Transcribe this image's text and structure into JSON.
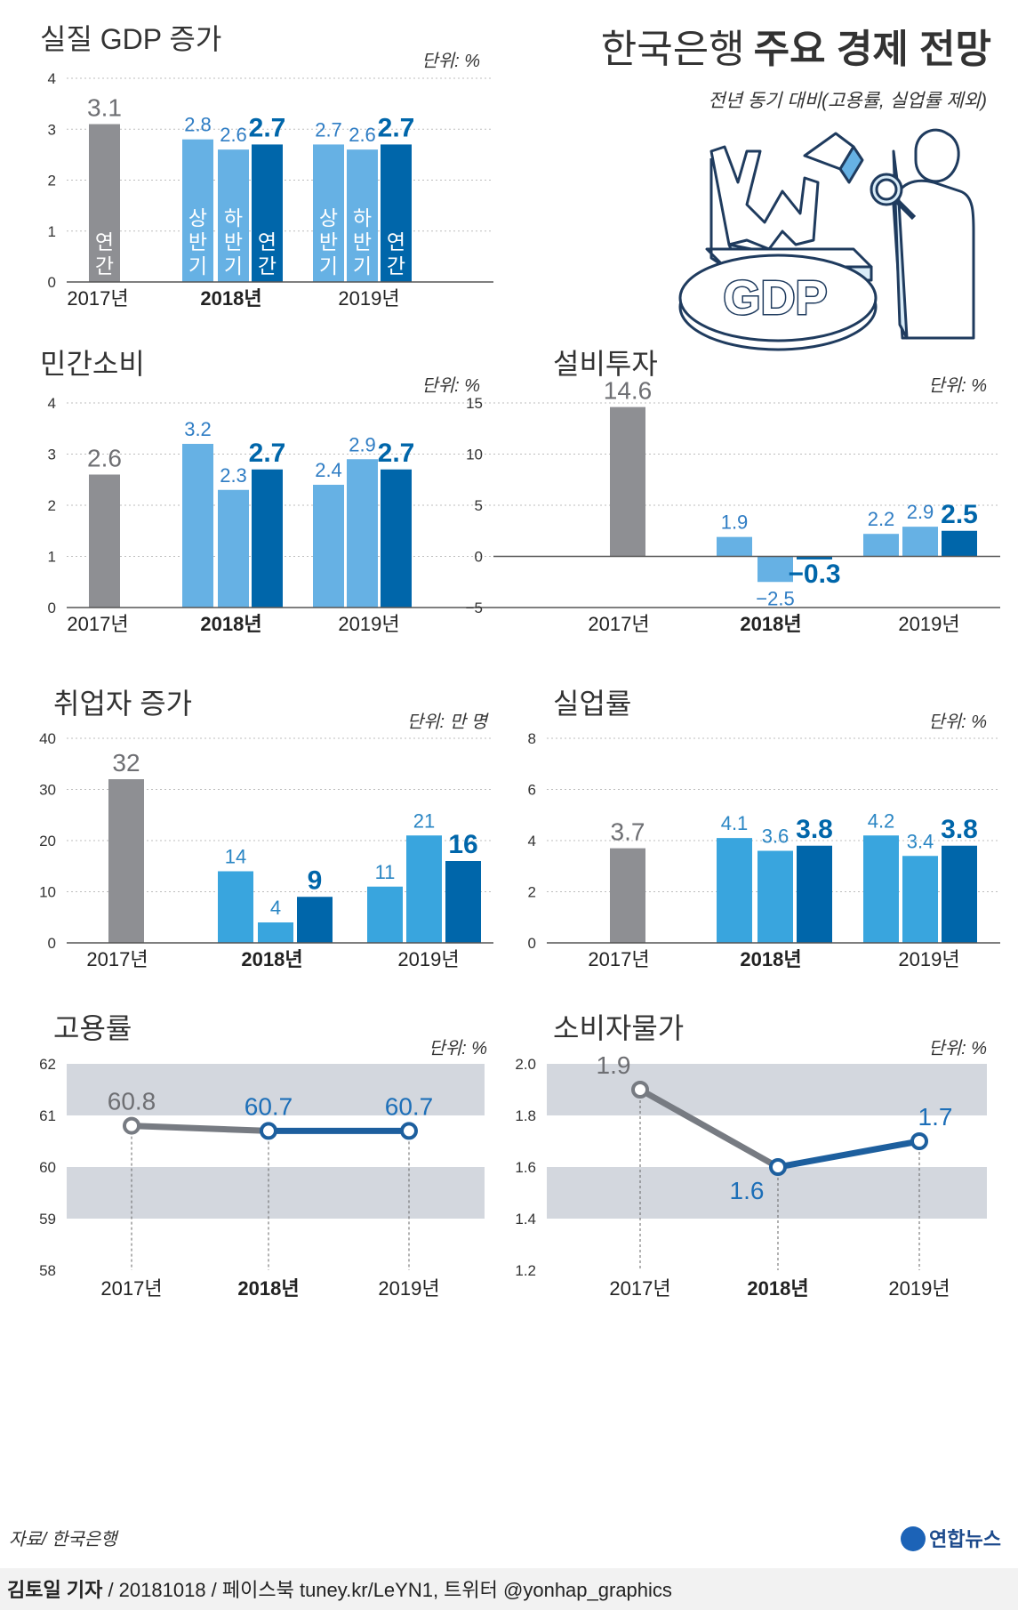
{
  "header": {
    "title_normal": "한국은행",
    "title_bold": "주요 경제 전망",
    "subtitle": "전년 동기 대비(고용률, 실업률 제외)",
    "illustration_label": "GDP"
  },
  "colors": {
    "gray": "#8e8f93",
    "light": "#66b1e4",
    "dark": "#0066aa",
    "sky": "#39a5de",
    "band": "#d3d7de",
    "text": "#333333"
  },
  "chart_data": [
    {
      "id": "gdp",
      "type": "bar",
      "title": "실질 GDP 증가",
      "unit": "단위: %",
      "ylim": [
        0,
        4
      ],
      "yticks": [
        "0",
        "1",
        "2",
        "3",
        "4"
      ],
      "palette": "a",
      "groups": [
        "2017년",
        "2018년",
        "2019년"
      ],
      "bars": [
        {
          "group": 0,
          "kind": "gray",
          "value": 3.1,
          "label": "3.1",
          "inner": "연간"
        },
        {
          "group": 1,
          "kind": "light",
          "value": 2.8,
          "label": "2.8",
          "inner": "상반기"
        },
        {
          "group": 1,
          "kind": "light",
          "value": 2.6,
          "label": "2.6",
          "inner": "하반기"
        },
        {
          "group": 1,
          "kind": "dark",
          "value": 2.7,
          "label": "2.7",
          "inner": "연간"
        },
        {
          "group": 2,
          "kind": "light",
          "value": 2.7,
          "label": "2.7",
          "inner": "상반기"
        },
        {
          "group": 2,
          "kind": "light",
          "value": 2.6,
          "label": "2.6",
          "inner": "하반기"
        },
        {
          "group": 2,
          "kind": "dark",
          "value": 2.7,
          "label": "2.7",
          "inner": "연간"
        }
      ]
    },
    {
      "id": "consumption",
      "type": "bar",
      "title": "민간소비",
      "unit": "단위: %",
      "ylim": [
        0,
        4
      ],
      "yticks": [
        "0",
        "1",
        "2",
        "3",
        "4"
      ],
      "palette": "a",
      "groups": [
        "2017년",
        "2018년",
        "2019년"
      ],
      "bars": [
        {
          "group": 0,
          "kind": "gray",
          "value": 2.6,
          "label": "2.6"
        },
        {
          "group": 1,
          "kind": "light",
          "value": 3.2,
          "label": "3.2"
        },
        {
          "group": 1,
          "kind": "light",
          "value": 2.3,
          "label": "2.3"
        },
        {
          "group": 1,
          "kind": "dark",
          "value": 2.7,
          "label": "2.7"
        },
        {
          "group": 2,
          "kind": "light",
          "value": 2.4,
          "label": "2.4"
        },
        {
          "group": 2,
          "kind": "light",
          "value": 2.9,
          "label": "2.9"
        },
        {
          "group": 2,
          "kind": "dark",
          "value": 2.7,
          "label": "2.7"
        }
      ]
    },
    {
      "id": "investment",
      "type": "bar",
      "title": "설비투자",
      "unit": "단위: %",
      "ylim": [
        -5,
        15
      ],
      "yticks": [
        "−5",
        "0",
        "5",
        "10",
        "15"
      ],
      "palette": "a",
      "groups": [
        "2017년",
        "2018년",
        "2019년"
      ],
      "bars": [
        {
          "group": 0,
          "kind": "gray",
          "value": 14.6,
          "label": "14.6"
        },
        {
          "group": 1,
          "kind": "light",
          "value": 1.9,
          "label": "1.9"
        },
        {
          "group": 1,
          "kind": "light",
          "value": -2.5,
          "label": "−2.5"
        },
        {
          "group": 1,
          "kind": "dark",
          "value": -0.3,
          "label": "−0.3"
        },
        {
          "group": 2,
          "kind": "light",
          "value": 2.2,
          "label": "2.2"
        },
        {
          "group": 2,
          "kind": "light",
          "value": 2.9,
          "label": "2.9"
        },
        {
          "group": 2,
          "kind": "dark",
          "value": 2.5,
          "label": "2.5"
        }
      ]
    },
    {
      "id": "employed",
      "type": "bar",
      "title": "취업자 증가",
      "unit": "단위: 만 명",
      "ylim": [
        0,
        40
      ],
      "yticks": [
        "0",
        "10",
        "20",
        "30",
        "40"
      ],
      "palette": "b",
      "groups": [
        "2017년",
        "2018년",
        "2019년"
      ],
      "bars": [
        {
          "group": 0,
          "kind": "gray",
          "value": 32,
          "label": "32"
        },
        {
          "group": 1,
          "kind": "sky",
          "value": 14,
          "label": "14"
        },
        {
          "group": 1,
          "kind": "sky",
          "value": 4,
          "label": "4"
        },
        {
          "group": 1,
          "kind": "dark",
          "value": 9,
          "label": "9"
        },
        {
          "group": 2,
          "kind": "sky",
          "value": 11,
          "label": "11"
        },
        {
          "group": 2,
          "kind": "sky",
          "value": 21,
          "label": "21"
        },
        {
          "group": 2,
          "kind": "dark",
          "value": 16,
          "label": "16"
        }
      ]
    },
    {
      "id": "unemployment",
      "type": "bar",
      "title": "실업률",
      "unit": "단위: %",
      "ylim": [
        0,
        8
      ],
      "yticks": [
        "0",
        "2",
        "4",
        "6",
        "8"
      ],
      "palette": "b",
      "groups": [
        "2017년",
        "2018년",
        "2019년"
      ],
      "bars": [
        {
          "group": 0,
          "kind": "gray",
          "value": 3.7,
          "label": "3.7"
        },
        {
          "group": 1,
          "kind": "sky",
          "value": 4.1,
          "label": "4.1"
        },
        {
          "group": 1,
          "kind": "sky",
          "value": 3.6,
          "label": "3.6"
        },
        {
          "group": 1,
          "kind": "dark",
          "value": 3.8,
          "label": "3.8"
        },
        {
          "group": 2,
          "kind": "sky",
          "value": 4.2,
          "label": "4.2"
        },
        {
          "group": 2,
          "kind": "sky",
          "value": 3.4,
          "label": "3.4"
        },
        {
          "group": 2,
          "kind": "dark",
          "value": 3.8,
          "label": "3.8"
        }
      ]
    },
    {
      "id": "employment-rate",
      "type": "line",
      "title": "고용률",
      "unit": "단위: %",
      "ylim": [
        58,
        62
      ],
      "yticks": [
        "58",
        "59",
        "60",
        "61",
        "62"
      ],
      "x": [
        "2017년",
        "2018년",
        "2019년"
      ],
      "values": [
        60.8,
        60.7,
        60.7
      ],
      "labels": [
        "60.8",
        "60.7",
        "60.7"
      ]
    },
    {
      "id": "cpi",
      "type": "line",
      "title": "소비자물가",
      "unit": "단위: %",
      "ylim": [
        1.2,
        2.0
      ],
      "yticks": [
        "1.2",
        "1.4",
        "1.6",
        "1.8",
        "2.0"
      ],
      "x": [
        "2017년",
        "2018년",
        "2019년"
      ],
      "values": [
        1.9,
        1.6,
        1.7
      ],
      "labels": [
        "1.9",
        "1.6",
        "1.7"
      ]
    }
  ],
  "footer": {
    "source": "자료/ 한국은행",
    "logo_text": "연합뉴스",
    "reporter": "김토일 기자",
    "credit": " / 20181018 / 페이스북 tuney.kr/LeYN1, 트위터 @yonhap_graphics"
  }
}
